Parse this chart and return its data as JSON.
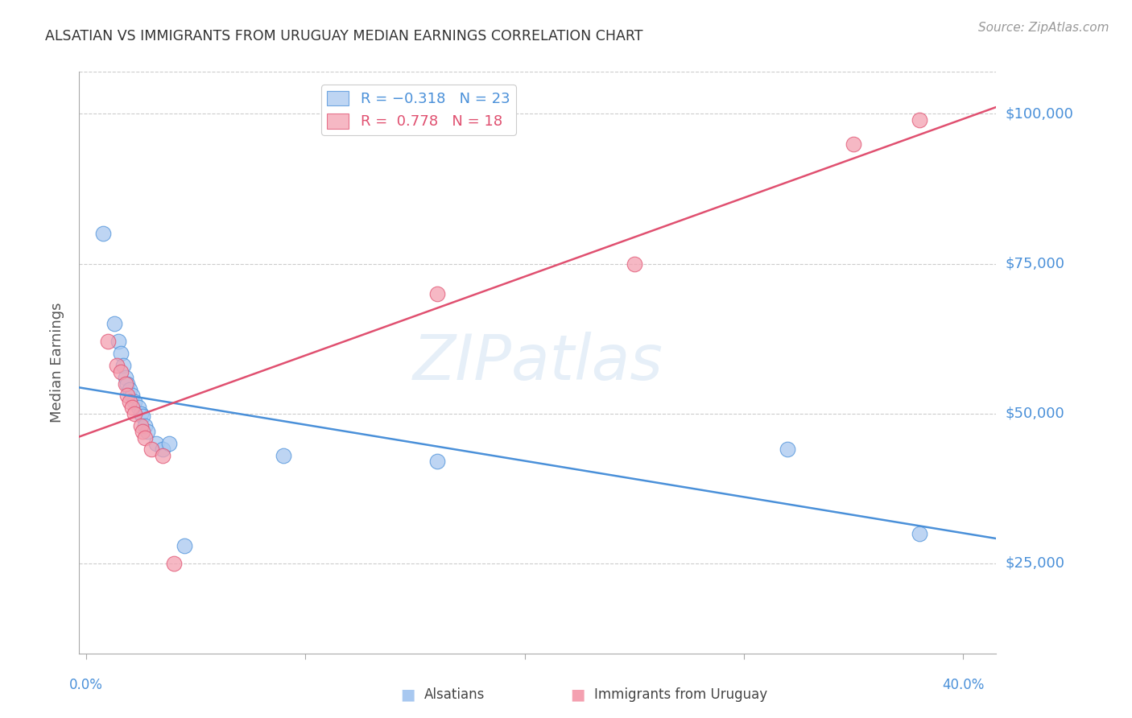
{
  "title": "ALSATIAN VS IMMIGRANTS FROM URUGUAY MEDIAN EARNINGS CORRELATION CHART",
  "source": "Source: ZipAtlas.com",
  "ylabel": "Median Earnings",
  "y_ticks": [
    25000,
    50000,
    75000,
    100000
  ],
  "y_tick_labels": [
    "$25,000",
    "$50,000",
    "$75,000",
    "$100,000"
  ],
  "y_min": 10000,
  "y_max": 107000,
  "x_min": -0.003,
  "x_max": 0.415,
  "watermark": "ZIPatlas",
  "alsatians": {
    "color": "#A8C8F0",
    "line_color": "#4A90D9",
    "x": [
      0.008,
      0.013,
      0.015,
      0.016,
      0.017,
      0.018,
      0.019,
      0.02,
      0.021,
      0.022,
      0.024,
      0.025,
      0.026,
      0.027,
      0.028,
      0.032,
      0.035,
      0.038,
      0.045,
      0.09,
      0.16,
      0.32,
      0.38
    ],
    "y": [
      80000,
      65000,
      62000,
      60000,
      58000,
      56000,
      55000,
      54000,
      53000,
      52000,
      51000,
      50000,
      49500,
      48000,
      47000,
      45000,
      44000,
      45000,
      28000,
      43000,
      42000,
      44000,
      30000
    ]
  },
  "uruguay": {
    "color": "#F4A0B0",
    "line_color": "#E05070",
    "x": [
      0.01,
      0.014,
      0.016,
      0.018,
      0.019,
      0.02,
      0.021,
      0.022,
      0.025,
      0.026,
      0.027,
      0.03,
      0.035,
      0.04,
      0.16,
      0.25,
      0.35,
      0.38
    ],
    "y": [
      62000,
      58000,
      57000,
      55000,
      53000,
      52000,
      51000,
      50000,
      48000,
      47000,
      46000,
      44000,
      43000,
      25000,
      70000,
      75000,
      95000,
      99000
    ]
  },
  "background_color": "#FFFFFF",
  "grid_color": "#CCCCCC",
  "title_color": "#333333",
  "source_color": "#999999",
  "tick_label_color": "#4A90D9"
}
